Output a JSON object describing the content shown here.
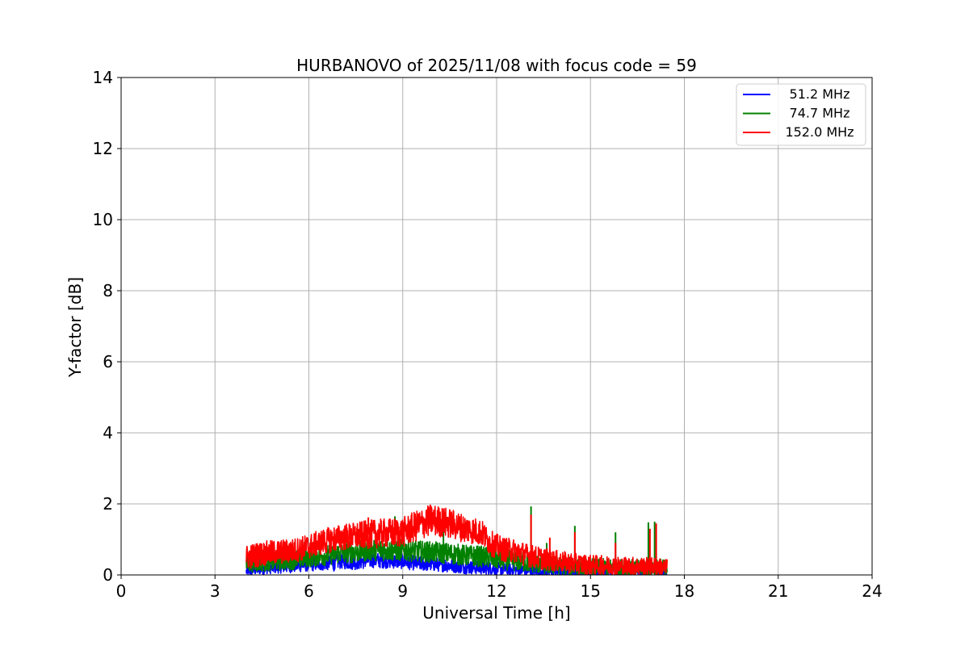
{
  "chart_data": {
    "type": "line",
    "title": "HURBANOVO of 2025/11/08 with focus code = 59",
    "xlabel": "Universal Time [h]",
    "ylabel": "Y-factor [dB]",
    "xlim": [
      0,
      24
    ],
    "ylim": [
      0,
      14
    ],
    "xticks": [
      0,
      3,
      6,
      9,
      12,
      15,
      18,
      21,
      24
    ],
    "yticks": [
      0,
      2,
      4,
      6,
      8,
      10,
      12,
      14
    ],
    "grid": true,
    "legend_position": "top-right",
    "series": [
      {
        "name": "  51.2 MHz",
        "color": "#0000ff",
        "baseline": [
          [
            4.0,
            0.1
          ],
          [
            4.5,
            0.18
          ],
          [
            5.0,
            0.22
          ],
          [
            5.5,
            0.25
          ],
          [
            6.0,
            0.3
          ],
          [
            6.5,
            0.33
          ],
          [
            7.0,
            0.38
          ],
          [
            7.5,
            0.36
          ],
          [
            8.0,
            0.42
          ],
          [
            8.5,
            0.4
          ],
          [
            9.0,
            0.38
          ],
          [
            9.5,
            0.32
          ],
          [
            10.0,
            0.3
          ],
          [
            10.5,
            0.27
          ],
          [
            11.0,
            0.22
          ],
          [
            11.5,
            0.2
          ],
          [
            12.0,
            0.18
          ],
          [
            12.5,
            0.15
          ],
          [
            13.0,
            0.12
          ],
          [
            13.5,
            0.1
          ],
          [
            14.0,
            0.08
          ],
          [
            15.0,
            0.08
          ],
          [
            16.0,
            0.07
          ],
          [
            17.0,
            0.07
          ],
          [
            17.45,
            0.07
          ]
        ],
        "band": [
          [
            4.0,
            0.15
          ],
          [
            6.0,
            0.2
          ],
          [
            8.0,
            0.22
          ],
          [
            10.0,
            0.2
          ],
          [
            12.0,
            0.18
          ],
          [
            14.0,
            0.15
          ],
          [
            17.45,
            0.12
          ]
        ],
        "spikes": [
          [
            6.8,
            0.1
          ],
          [
            8.1,
            0.6
          ],
          [
            11.6,
            0.05
          ]
        ]
      },
      {
        "name": "  74.7 MHz",
        "color": "#008000",
        "baseline": [
          [
            4.0,
            0.3
          ],
          [
            4.5,
            0.35
          ],
          [
            5.0,
            0.38
          ],
          [
            5.5,
            0.42
          ],
          [
            6.0,
            0.5
          ],
          [
            6.5,
            0.55
          ],
          [
            7.0,
            0.62
          ],
          [
            7.5,
            0.65
          ],
          [
            8.0,
            0.72
          ],
          [
            8.5,
            0.7
          ],
          [
            9.0,
            0.7
          ],
          [
            9.5,
            0.66
          ],
          [
            10.0,
            0.64
          ],
          [
            10.5,
            0.6
          ],
          [
            11.0,
            0.55
          ],
          [
            11.5,
            0.52
          ],
          [
            12.0,
            0.45
          ],
          [
            12.5,
            0.4
          ],
          [
            13.0,
            0.35
          ],
          [
            13.5,
            0.28
          ],
          [
            14.0,
            0.25
          ],
          [
            15.0,
            0.22
          ],
          [
            16.0,
            0.2
          ],
          [
            17.0,
            0.2
          ],
          [
            17.45,
            0.2
          ]
        ],
        "band": [
          [
            4.0,
            0.25
          ],
          [
            6.0,
            0.28
          ],
          [
            8.0,
            0.32
          ],
          [
            10.0,
            0.3
          ],
          [
            12.0,
            0.3
          ],
          [
            14.0,
            0.25
          ],
          [
            17.45,
            0.25
          ]
        ],
        "spikes": [
          [
            8.75,
            1.65
          ],
          [
            10.3,
            1.4
          ],
          [
            13.1,
            1.93
          ],
          [
            13.6,
            0.9
          ],
          [
            14.5,
            1.38
          ],
          [
            15.8,
            1.2
          ],
          [
            16.85,
            1.48
          ],
          [
            17.05,
            1.5
          ]
        ]
      },
      {
        "name": "152.0 MHz",
        "color": "#ff0000",
        "baseline": [
          [
            4.0,
            0.5
          ],
          [
            4.5,
            0.6
          ],
          [
            5.0,
            0.64
          ],
          [
            5.5,
            0.68
          ],
          [
            6.0,
            0.8
          ],
          [
            6.5,
            0.95
          ],
          [
            7.0,
            1.05
          ],
          [
            7.5,
            1.1
          ],
          [
            8.0,
            1.15
          ],
          [
            8.5,
            1.18
          ],
          [
            9.0,
            1.2
          ],
          [
            9.5,
            1.4
          ],
          [
            9.9,
            1.55
          ],
          [
            10.5,
            1.45
          ],
          [
            11.0,
            1.3
          ],
          [
            11.5,
            1.2
          ],
          [
            11.8,
            0.9
          ],
          [
            12.2,
            0.72
          ],
          [
            12.6,
            0.68
          ],
          [
            13.0,
            0.55
          ],
          [
            13.5,
            0.45
          ],
          [
            14.0,
            0.38
          ],
          [
            14.5,
            0.32
          ],
          [
            15.0,
            0.28
          ],
          [
            16.0,
            0.25
          ],
          [
            17.0,
            0.24
          ],
          [
            17.45,
            0.2
          ]
        ],
        "band": [
          [
            4.0,
            0.35
          ],
          [
            6.0,
            0.35
          ],
          [
            8.0,
            0.4
          ],
          [
            10.0,
            0.45
          ],
          [
            12.0,
            0.35
          ],
          [
            14.0,
            0.3
          ],
          [
            17.45,
            0.25
          ]
        ],
        "spikes": [
          [
            7.9,
            1.62
          ],
          [
            9.8,
            1.82
          ],
          [
            10.4,
            1.6
          ],
          [
            13.1,
            1.7
          ],
          [
            13.7,
            1.05
          ],
          [
            14.5,
            1.2
          ],
          [
            15.8,
            0.9
          ],
          [
            16.9,
            1.3
          ],
          [
            17.1,
            1.45
          ]
        ]
      }
    ]
  }
}
